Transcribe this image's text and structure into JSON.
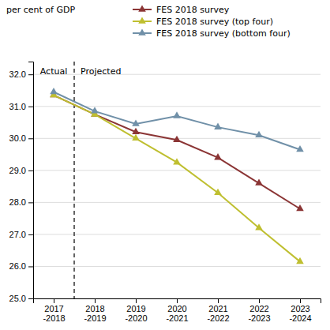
{
  "chart_data": {
    "type": "line",
    "ylabel": "per cent of GDP",
    "annotations": [
      "Actual",
      "Projected"
    ],
    "categories": [
      "2017\n-2018",
      "2018\n-2019",
      "2019\n-2020",
      "2020\n-2021",
      "2021\n-2022",
      "2022\n-2023",
      "2023\n-2024"
    ],
    "series": [
      {
        "name": "FES 2018 survey",
        "color": "#8B3535",
        "values": [
          31.35,
          30.75,
          30.2,
          29.95,
          29.4,
          28.6,
          27.8
        ]
      },
      {
        "name": "FES 2018 survey (top four)",
        "color": "#BFBF30",
        "values": [
          31.35,
          30.75,
          30.0,
          29.25,
          28.3,
          27.2,
          26.15
        ]
      },
      {
        "name": "FES 2018 survey (bottom four)",
        "color": "#7090A8",
        "values": [
          31.45,
          30.85,
          30.45,
          30.7,
          30.35,
          30.1,
          29.65
        ]
      }
    ],
    "ylim": [
      25.0,
      32.4
    ],
    "yticks": [
      {
        "value": 25,
        "label": "25.0"
      },
      {
        "value": 26,
        "label": "26.0"
      },
      {
        "value": 27,
        "label": "27.0"
      },
      {
        "value": 28,
        "label": "28.0"
      },
      {
        "value": 29,
        "label": "29.0"
      },
      {
        "value": 30,
        "label": "30.0"
      },
      {
        "value": 31,
        "label": "31.0"
      },
      {
        "value": 32,
        "label": "32.0"
      }
    ],
    "grid": true,
    "legend": "top",
    "marker": "triangle",
    "line_style": "solid"
  }
}
